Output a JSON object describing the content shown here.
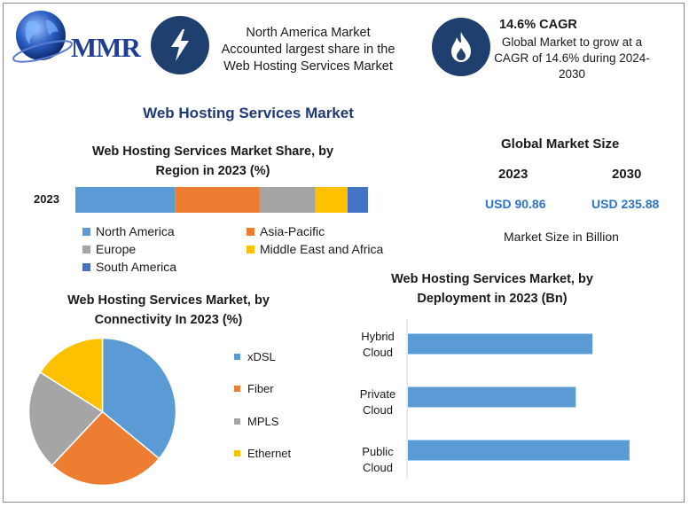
{
  "header": {
    "logo_text": "MMR",
    "box1": {
      "icon": "lightning-bolt-icon",
      "lines": [
        "North America Market",
        "Accounted largest share in the",
        "Web Hosting Services Market"
      ]
    },
    "box2": {
      "icon": "flame-icon",
      "title": "14.6% CAGR",
      "lines": [
        "Global Market to grow at a",
        "CAGR of 14.6% during 2024-",
        "2030"
      ]
    }
  },
  "main_title": "Web Hosting Services Market",
  "market_size": {
    "title": "Global Market Size",
    "year_a": "2023",
    "year_b": "2030",
    "value_a": "USD 90.86",
    "value_b": "USD 235.88",
    "note": "Market Size in Billion"
  },
  "colors": {
    "north_america": "#5b9bd5",
    "asia_pacific": "#ed7d31",
    "europe": "#a5a5a5",
    "mea": "#ffc000",
    "south_america": "#4472c4",
    "dark_icon_bg": "#1f3f6f"
  },
  "chart_data": [
    {
      "type": "bar",
      "orientation": "horizontal-stacked",
      "title_lines": [
        "Web Hosting Services Market Share, by",
        "Region in 2023 (%)"
      ],
      "categories": [
        "2023"
      ],
      "series": [
        {
          "name": "North America",
          "values": [
            34
          ],
          "color": "#5b9bd5"
        },
        {
          "name": "Asia-Pacific",
          "values": [
            29
          ],
          "color": "#ed7d31"
        },
        {
          "name": "Europe",
          "values": [
            19
          ],
          "color": "#a5a5a5"
        },
        {
          "name": "Middle East and Africa",
          "values": [
            11
          ],
          "color": "#ffc000"
        },
        {
          "name": "South America",
          "values": [
            7
          ],
          "color": "#4472c4"
        }
      ],
      "legend": [
        "North America",
        "Asia-Pacific",
        "Europe",
        "Middle East and Africa",
        "South America"
      ],
      "legend_position": "bottom"
    },
    {
      "type": "pie",
      "title_lines": [
        "Web Hosting Services Market, by",
        "Connectivity In 2023 (%)"
      ],
      "labels": [
        "xDSL",
        "Fiber",
        "MPLS",
        "Ethernet"
      ],
      "values": [
        36,
        26,
        22,
        16
      ],
      "colors": [
        "#5b9bd5",
        "#ed7d31",
        "#a5a5a5",
        "#ffc000"
      ],
      "legend_position": "right"
    },
    {
      "type": "bar",
      "orientation": "horizontal",
      "title_lines": [
        "Web Hosting Services Market, by",
        "Deployment in 2023 (Bn)"
      ],
      "categories": [
        [
          "Hybrid",
          "Cloud"
        ],
        [
          "Private",
          "Cloud"
        ],
        [
          "Public",
          "Cloud"
        ]
      ],
      "values": [
        27.5,
        25,
        33
      ],
      "xlim": [
        0,
        35
      ],
      "color": "#5b9bd5"
    }
  ]
}
